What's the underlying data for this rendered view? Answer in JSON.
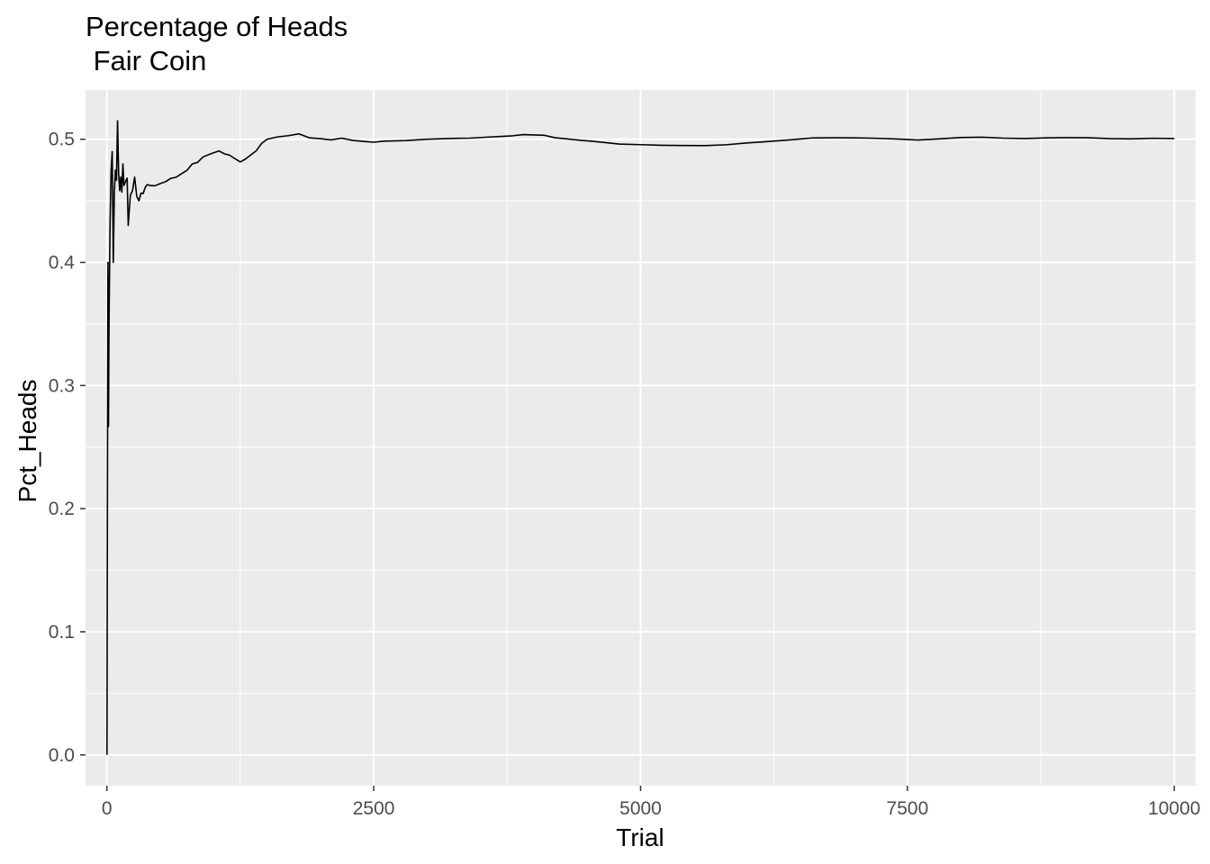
{
  "chart_data": {
    "type": "line",
    "title": "Percentage of Heads",
    "subtitle": " Fair Coin",
    "xlabel": "Trial",
    "ylabel": "Pct_Heads",
    "xlim": [
      -200,
      10200
    ],
    "ylim": [
      -0.025,
      0.54
    ],
    "x_ticks": [
      0,
      2500,
      5000,
      7500,
      10000
    ],
    "x_tick_labels": [
      "0",
      "2500",
      "5000",
      "7500",
      "10000"
    ],
    "y_ticks": [
      0.0,
      0.1,
      0.2,
      0.3,
      0.4,
      0.5
    ],
    "y_tick_labels": [
      "0.0",
      "0.1",
      "0.2",
      "0.3",
      "0.4",
      "0.5"
    ],
    "grid": true,
    "panel_color": "#ebebeb",
    "grid_color": "#ffffff",
    "line_color": "#000000",
    "series": [
      {
        "x": [
          1,
          5,
          10,
          15,
          20,
          30,
          40,
          50,
          60,
          70,
          80,
          90,
          100,
          110,
          120,
          130,
          140,
          150,
          160,
          170,
          180,
          190,
          200,
          220,
          240,
          260,
          280,
          300,
          320,
          340,
          360,
          380,
          400,
          450,
          500,
          550,
          600,
          650,
          700,
          750,
          800,
          850,
          900,
          950,
          1000,
          1050,
          1100,
          1150,
          1200,
          1250,
          1300,
          1350,
          1400,
          1450,
          1500,
          1600,
          1700,
          1800,
          1900,
          2000,
          2100,
          2200,
          2300,
          2400,
          2500,
          2600,
          2800,
          3000,
          3200,
          3400,
          3600,
          3800,
          3900,
          4000,
          4100,
          4200,
          4400,
          4600,
          4800,
          5000,
          5200,
          5400,
          5600,
          5800,
          6000,
          6200,
          6400,
          6600,
          6800,
          7000,
          7200,
          7400,
          7600,
          7800,
          8000,
          8200,
          8400,
          8600,
          8800,
          9000,
          9200,
          9400,
          9600,
          9800,
          10000
        ],
        "y": [
          0.0,
          0.2,
          0.4,
          0.2667,
          0.35,
          0.4333,
          0.475,
          0.49,
          0.4,
          0.4571,
          0.475,
          0.4667,
          0.515,
          0.4727,
          0.4583,
          0.4692,
          0.4571,
          0.48,
          0.4625,
          0.4647,
          0.4667,
          0.4684,
          0.43,
          0.4545,
          0.4583,
          0.4692,
          0.4536,
          0.45,
          0.4563,
          0.4559,
          0.4611,
          0.4632,
          0.4625,
          0.4622,
          0.464,
          0.4655,
          0.4683,
          0.4692,
          0.4721,
          0.4747,
          0.48,
          0.4812,
          0.4856,
          0.4874,
          0.489,
          0.4905,
          0.4882,
          0.487,
          0.4842,
          0.4816,
          0.484,
          0.4874,
          0.4907,
          0.4966,
          0.5,
          0.5019,
          0.5029,
          0.5044,
          0.5011,
          0.5005,
          0.4995,
          0.5009,
          0.4991,
          0.4983,
          0.4976,
          0.4985,
          0.4989,
          0.5,
          0.5006,
          0.5009,
          0.5019,
          0.5028,
          0.5038,
          0.5035,
          0.5032,
          0.5012,
          0.4995,
          0.4979,
          0.4961,
          0.4956,
          0.4951,
          0.4949,
          0.4948,
          0.4955,
          0.497,
          0.4982,
          0.4995,
          0.501,
          0.5012,
          0.5011,
          0.5008,
          0.5002,
          0.4994,
          0.5003,
          0.5014,
          0.5017,
          0.5009,
          0.5006,
          0.5011,
          0.5013,
          0.5012,
          0.5005,
          0.5003,
          0.5008,
          0.5006
        ]
      }
    ]
  }
}
